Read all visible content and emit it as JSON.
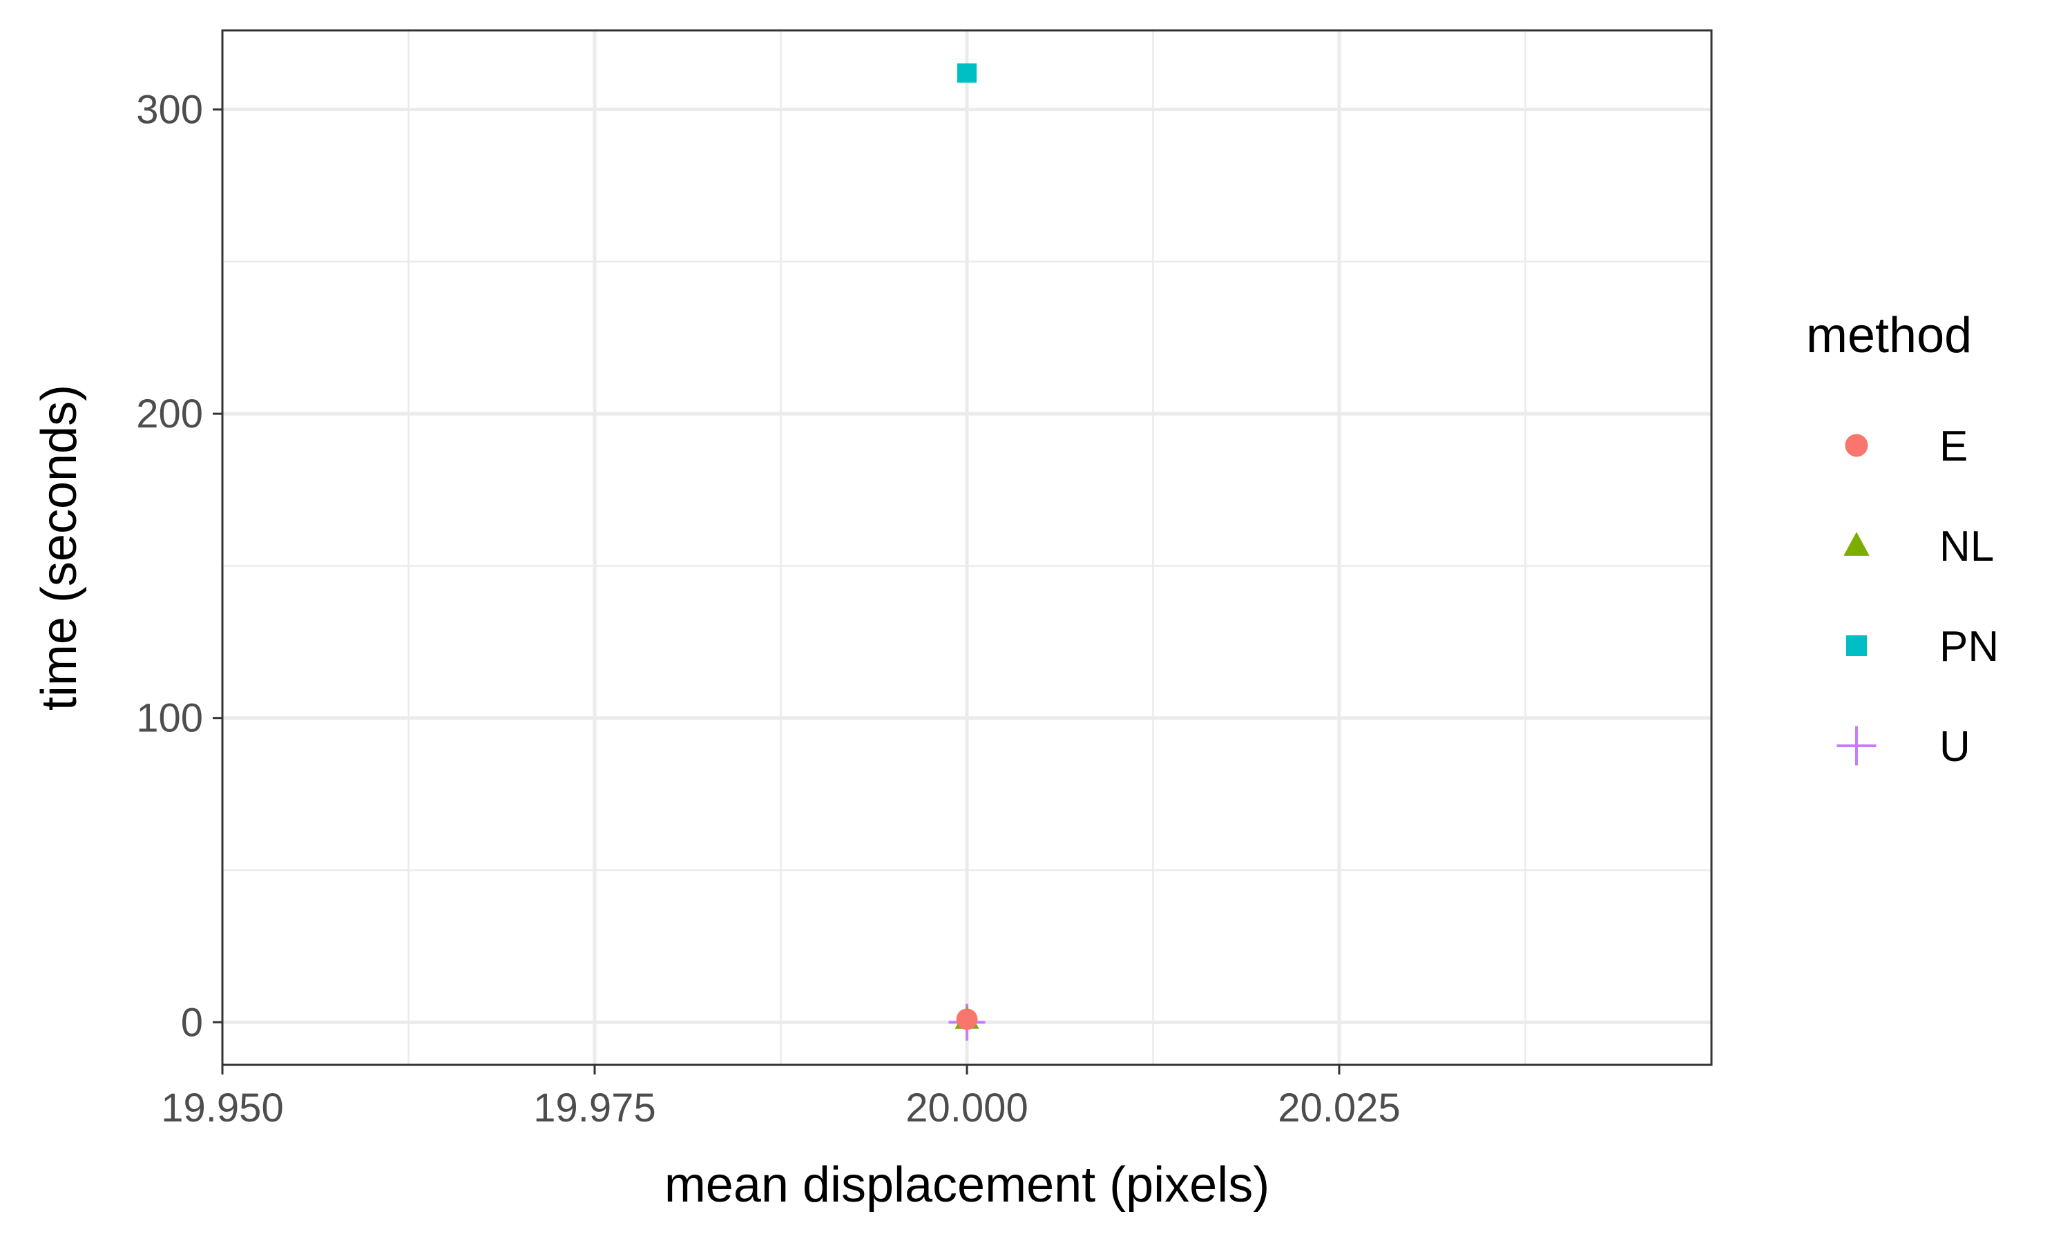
{
  "chart_data": {
    "type": "scatter",
    "xlabel": "mean displacement (pixels)",
    "ylabel": "time (seconds)",
    "xlim": [
      19.95,
      20.05
    ],
    "ylim": [
      -14,
      326
    ],
    "x_ticks": [
      19.95,
      19.975,
      20.0,
      20.025
    ],
    "x_tick_labels": [
      "19.950",
      "19.975",
      "20.000",
      "20.025"
    ],
    "y_ticks": [
      0,
      100,
      200,
      300
    ],
    "y_tick_labels": [
      "0",
      "100",
      "200",
      "300"
    ],
    "grid": true,
    "legend": {
      "title": "method",
      "position": "right"
    },
    "series": [
      {
        "name": "E",
        "shape": "circle",
        "color": "#F8766D",
        "x": [
          20.0
        ],
        "y": [
          1
        ]
      },
      {
        "name": "NL",
        "shape": "triangle",
        "color": "#7CAE00",
        "x": [
          20.0
        ],
        "y": [
          1
        ]
      },
      {
        "name": "PN",
        "shape": "square",
        "color": "#00BFC4",
        "x": [
          20.0
        ],
        "y": [
          312
        ]
      },
      {
        "name": "U",
        "shape": "plus",
        "color": "#C77CFF",
        "x": [
          20.0
        ],
        "y": [
          0
        ]
      }
    ]
  }
}
